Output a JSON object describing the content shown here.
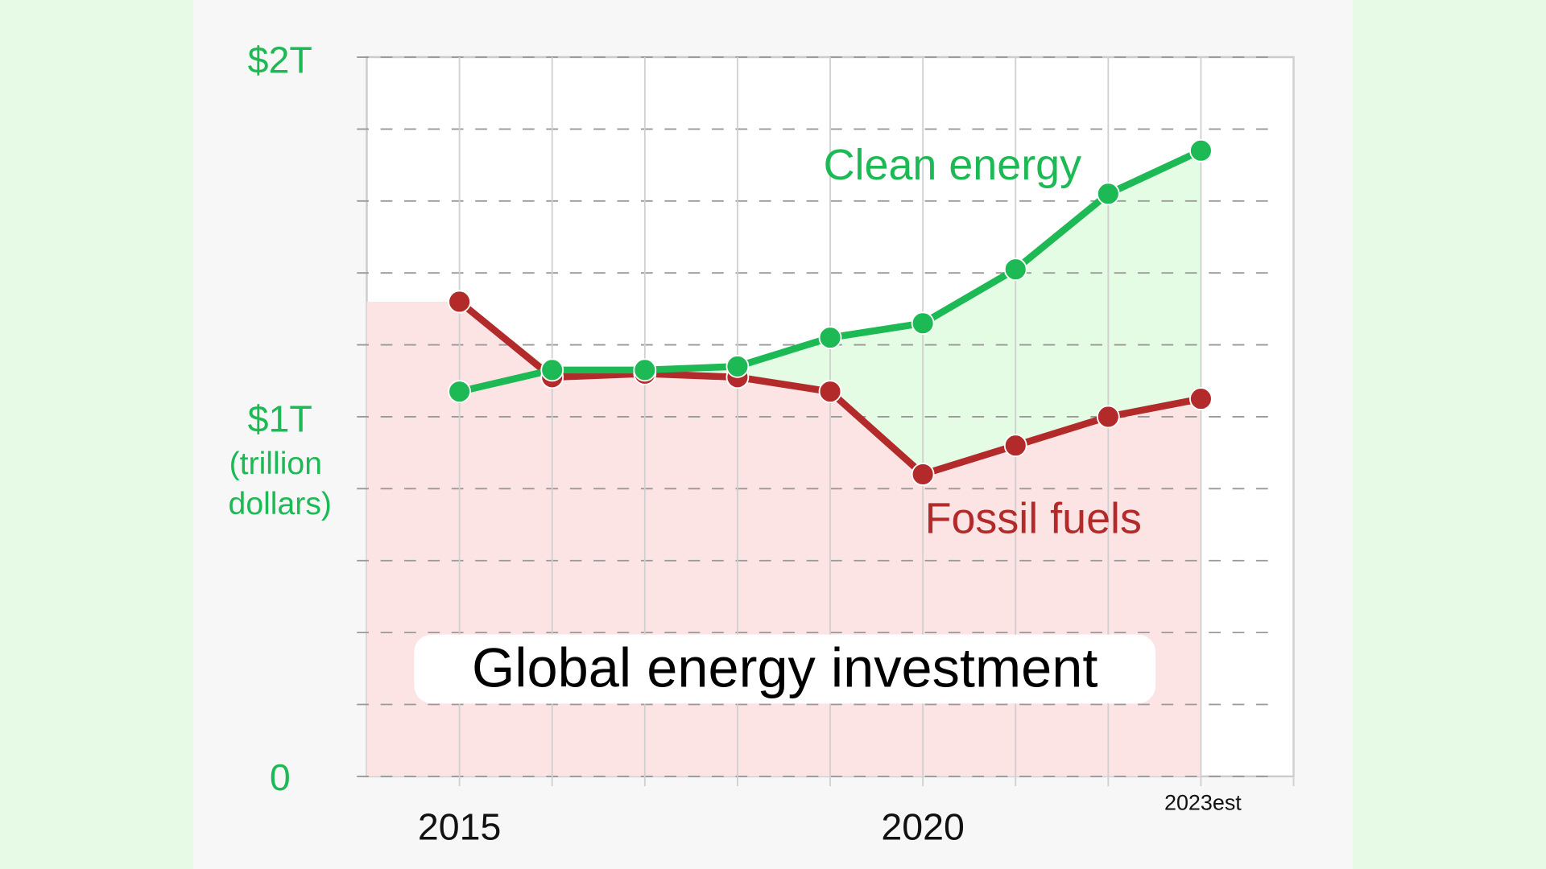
{
  "chart_data": {
    "type": "line",
    "title": "Global energy investment",
    "ylabel": "(trillion dollars)",
    "y_tick_labels": [
      "0",
      "$1T",
      "$2T"
    ],
    "ylim": [
      0,
      2
    ],
    "y_grid_step": 0.2,
    "x": [
      2015,
      2016,
      2017,
      2018,
      2019,
      2020,
      2021,
      2022,
      2023
    ],
    "x_tick_labels": [
      {
        "x": 2015,
        "label": "2015"
      },
      {
        "x": 2020,
        "label": "2020"
      },
      {
        "x": 2023,
        "label": "2023est"
      }
    ],
    "grid": true,
    "series": [
      {
        "name": "Clean energy",
        "color": "#1db954",
        "values": [
          1.07,
          1.13,
          1.13,
          1.14,
          1.22,
          1.26,
          1.41,
          1.62,
          1.74
        ]
      },
      {
        "name": "Fossil fuels",
        "color": "#b22a2a",
        "values": [
          1.32,
          1.11,
          1.12,
          1.11,
          1.07,
          0.84,
          0.92,
          1.0,
          1.05
        ]
      }
    ],
    "fill_colors": {
      "fossil_area": "#fde4e4",
      "clean_gap": "#e4fbe4"
    },
    "background_colors": {
      "outer": "#e6fae6",
      "panel": "#f7f7f7",
      "plot": "#ffffff"
    }
  }
}
